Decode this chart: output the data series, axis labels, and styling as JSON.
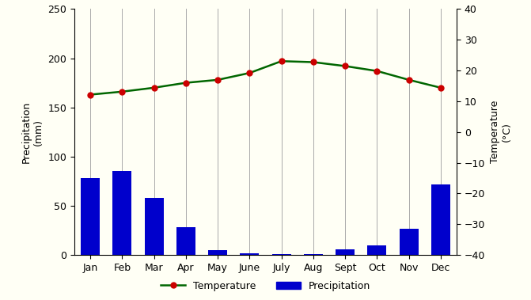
{
  "months": [
    "Jan",
    "Feb",
    "Mar",
    "Apr",
    "May",
    "June",
    "July",
    "Aug",
    "Sept",
    "Oct",
    "Nov",
    "Dec"
  ],
  "precipitation": [
    78,
    85,
    58,
    28,
    5,
    2,
    1,
    1,
    6,
    10,
    27,
    72
  ],
  "temperature_mm": [
    163,
    166,
    170,
    175,
    178,
    185,
    197,
    196,
    192,
    187,
    178,
    170
  ],
  "bar_color": "#0000cc",
  "line_color": "#006600",
  "marker_color": "#cc0000",
  "background_color": "#fffff5",
  "ylabel_left": "Precipitation\n(mm)",
  "ylabel_right": "Temperature\n(°C)",
  "ylim_left": [
    0,
    250
  ],
  "ylim_right": [
    -40,
    40
  ],
  "yticks_left": [
    0,
    50,
    100,
    150,
    200,
    250
  ],
  "yticks_right": [
    -40,
    -30,
    -20,
    -10,
    0,
    10,
    20,
    30,
    40
  ],
  "legend_temp": "Temperature",
  "legend_precip": "Precipitation",
  "vline_color": "#ccccaa",
  "spine_color": "#000000"
}
